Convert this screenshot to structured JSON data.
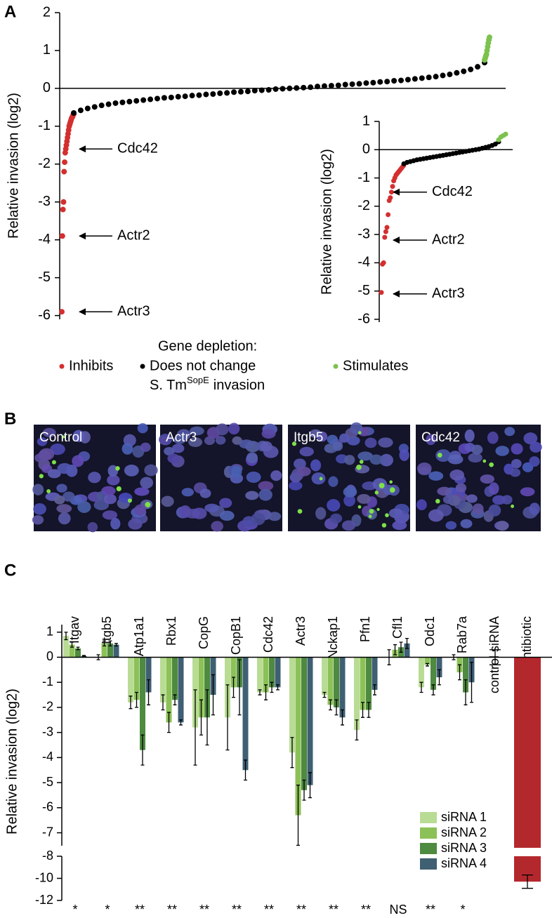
{
  "panel_labels": [
    "A",
    "B",
    "C"
  ],
  "micrograph_labels": [
    "Control",
    "Actr3",
    "Itgb5",
    "Cdc42"
  ],
  "chart_data": [
    {
      "type": "rank",
      "y_label": "Relative invasion (log2)",
      "ylim": [
        -6.1,
        2
      ],
      "yticks": [
        2,
        1,
        0,
        -1,
        -2,
        -3,
        -4,
        -5,
        -6
      ],
      "legend_title": "Gene depletion:",
      "legend_note": {
        "text": "S. Tm",
        "superscript": "SopE",
        "suffix": "invasion"
      },
      "series": [
        {
          "name": "Inhibits",
          "color": "#d42f2f",
          "values": [
            -5.9,
            -3.9,
            -3.2,
            -3.0,
            -2.2,
            -1.95,
            -1.7,
            -1.6,
            -1.5,
            -1.4,
            -1.3,
            -1.2,
            -1.1,
            -1.0,
            -0.95,
            -0.9,
            -0.85,
            -0.8,
            -0.77,
            -0.74,
            -0.7,
            -0.68
          ]
        },
        {
          "name": "Does  not change",
          "color": "#000000",
          "values": [
            -0.65,
            -0.58,
            -0.53,
            -0.49,
            -0.45,
            -0.42,
            -0.39,
            -0.37,
            -0.35,
            -0.33,
            -0.31,
            -0.29,
            -0.27,
            -0.25,
            -0.24,
            -0.22,
            -0.21,
            -0.19,
            -0.18,
            -0.16,
            -0.15,
            -0.13,
            -0.12,
            -0.1,
            -0.09,
            -0.08,
            -0.06,
            -0.05,
            -0.04,
            -0.02,
            -0.01,
            0.0,
            0.01,
            0.02,
            0.03,
            0.05,
            0.06,
            0.07,
            0.08,
            0.1,
            0.11,
            0.12,
            0.14,
            0.15,
            0.17,
            0.18,
            0.2,
            0.21,
            0.23,
            0.25,
            0.27,
            0.29,
            0.31,
            0.34,
            0.37,
            0.41,
            0.45,
            0.5,
            0.57,
            0.68
          ]
        },
        {
          "name": "Stimulates",
          "color": "#7cc24e",
          "values": [
            0.75,
            0.8,
            0.85,
            0.9,
            1.0,
            1.1,
            1.2,
            1.28,
            1.35
          ]
        }
      ],
      "annotations": [
        {
          "text": "Cdc42",
          "value": -1.6
        },
        {
          "text": "Actr2",
          "value": -3.9
        },
        {
          "text": "Actr3",
          "value": -5.9
        }
      ]
    },
    {
      "type": "rank",
      "y_label": "Relative invasion (log2)",
      "ylim": [
        -6.1,
        1
      ],
      "yticks": [
        1,
        0,
        -1,
        -2,
        -3,
        -4,
        -5,
        -6
      ],
      "series": [
        {
          "color": "#d42f2f",
          "values": [
            -5.05,
            -4.05,
            -4.0,
            -3.1,
            -2.9,
            -2.75,
            -2.3,
            -1.8,
            -1.7,
            -1.5,
            -1.3,
            -1.1,
            -1.0,
            -0.9,
            -0.85,
            -0.8,
            -0.75,
            -0.7,
            -0.65,
            -0.6,
            -0.55
          ]
        },
        {
          "color": "#000000",
          "values": [
            -0.5,
            -0.45,
            -0.42,
            -0.39,
            -0.36,
            -0.34,
            -0.32,
            -0.3,
            -0.28,
            -0.26,
            -0.24,
            -0.22,
            -0.2,
            -0.18,
            -0.16,
            -0.14,
            -0.12,
            -0.1,
            -0.08,
            -0.06,
            -0.04,
            -0.02,
            0.0,
            0.02,
            0.05,
            0.08,
            0.11,
            0.15,
            0.2,
            0.28
          ]
        },
        {
          "color": "#7cc24e",
          "values": [
            0.35,
            0.45,
            0.5,
            0.55
          ]
        }
      ],
      "annotations": [
        {
          "text": "Cdc42",
          "value": -1.5
        },
        {
          "text": "Actr2",
          "value": -3.2
        },
        {
          "text": "Actr3",
          "value": -5.1
        }
      ]
    },
    {
      "type": "bar",
      "y_label": "Relative invasion (log2)",
      "ylim": [
        -12,
        1.3
      ],
      "axis_break": [
        -7.6,
        -8
      ],
      "yticks": [
        1,
        0,
        -1,
        -2,
        -3,
        -4,
        -5,
        -6,
        -7,
        -8,
        -10,
        -12
      ],
      "categories": [
        "Itgav",
        "Itgb5",
        "Atp1a1",
        "Rbx1",
        "CopG",
        "CopB1",
        "Cdc42",
        "Actr3",
        "Nckap1",
        "Pfn1",
        "Cfl1",
        "Odc1",
        "Rab7a",
        "control siRNA",
        "Antibiotic"
      ],
      "significance": [
        "*",
        "*",
        "**",
        "**",
        "**",
        "**",
        "**",
        "**",
        "**",
        "**",
        "NS",
        "**",
        "*",
        null,
        null
      ],
      "series": [
        {
          "name": "siRNA 1",
          "color": "#b9dc94",
          "values": [
            0.85,
            0.0,
            -1.8,
            -1.8,
            -2.8,
            -2.4,
            -1.4,
            -3.8,
            -1.5,
            -2.9,
            0.0,
            -1.2,
            0.0,
            null,
            null
          ],
          "errors": [
            0.15,
            0.1,
            0.25,
            0.3,
            1.5,
            1.3,
            0.1,
            0.6,
            0.1,
            0.4,
            0.3,
            0.2,
            0.1,
            null,
            null
          ]
        },
        {
          "name": "siRNA 2",
          "color": "#8cc157",
          "values": [
            0.5,
            0.55,
            -1.7,
            -2.6,
            -2.4,
            -1.2,
            -1.4,
            -6.3,
            -1.9,
            -2.1,
            0.3,
            -0.3,
            -0.6,
            null,
            null
          ],
          "errors": [
            0.1,
            0.1,
            0.3,
            0.4,
            0.7,
            0.4,
            0.3,
            1.2,
            0.2,
            0.3,
            0.2,
            0.05,
            0.3,
            null,
            null
          ]
        },
        {
          "name": "siRNA 3",
          "color": "#4e8a3f",
          "values": [
            0.35,
            0.55,
            -3.7,
            -1.7,
            -2.4,
            -1.2,
            -1.2,
            -5.3,
            -2.0,
            -2.1,
            0.4,
            -1.3,
            -1.4,
            null,
            null
          ],
          "errors": [
            0.05,
            0.1,
            0.6,
            0.2,
            1.1,
            1.1,
            0.2,
            0.4,
            0.3,
            0.3,
            0.2,
            0.2,
            0.5,
            null,
            null
          ]
        },
        {
          "name": "siRNA 4",
          "color": "#3f5f73",
          "values": [
            0.05,
            0.5,
            -1.4,
            -2.6,
            -1.5,
            -4.5,
            -1.2,
            -5.1,
            -2.4,
            -1.3,
            0.55,
            -0.8,
            -1.0,
            null,
            null
          ],
          "errors": [
            0.02,
            0.05,
            0.5,
            0.1,
            0.8,
            0.4,
            0.1,
            0.5,
            0.3,
            0.2,
            0.2,
            0.3,
            0.8,
            null,
            null
          ]
        },
        {
          "color": "#000000",
          "values": [
            null,
            null,
            null,
            null,
            null,
            null,
            null,
            null,
            null,
            null,
            null,
            null,
            null,
            0,
            null
          ],
          "errors": [
            null,
            null,
            null,
            null,
            null,
            null,
            null,
            null,
            null,
            null,
            null,
            null,
            null,
            0.3,
            null
          ]
        },
        {
          "color": "#b3282d",
          "values": [
            null,
            null,
            null,
            null,
            null,
            null,
            null,
            null,
            null,
            null,
            null,
            null,
            null,
            null,
            -10.3
          ],
          "errors": [
            null,
            null,
            null,
            null,
            null,
            null,
            null,
            null,
            null,
            null,
            null,
            null,
            null,
            null,
            0.6
          ]
        }
      ]
    }
  ]
}
